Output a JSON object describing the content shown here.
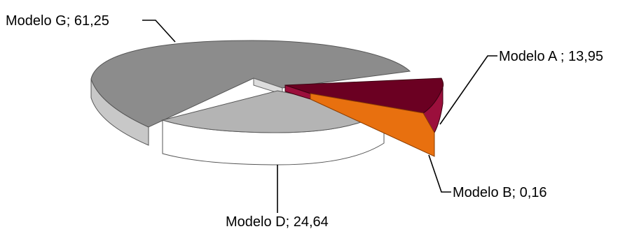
{
  "chart_data": {
    "type": "pie",
    "style": "3d-exploded",
    "title": "",
    "legend": "none",
    "slices": [
      {
        "label": "Modelo G; 61,25",
        "category": "Modelo G",
        "value": 61.25,
        "color": "#8c8c8c",
        "side_color": "#c8c8c8"
      },
      {
        "label": "Modelo A ; 13,95",
        "category": "Modelo A",
        "value": 13.95,
        "color": "#6b0022",
        "side_color": "#9b0f3c"
      },
      {
        "label": "Modelo B; 0,16",
        "category": "Modelo B",
        "value": 0.16,
        "color": "#d9650a",
        "side_color": "#e8700f"
      },
      {
        "label": "Modelo D; 24,64",
        "category": "Modelo D",
        "value": 24.64,
        "color": "#b4b4b4",
        "side_color": "#ffffff"
      }
    ]
  }
}
